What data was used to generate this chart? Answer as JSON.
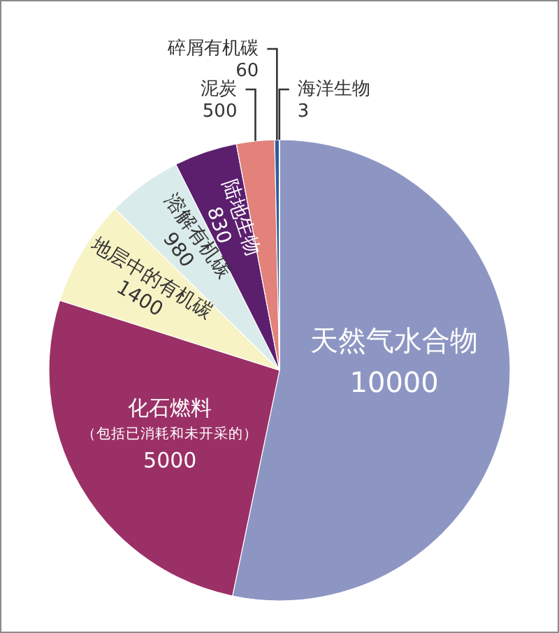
{
  "chart_data": {
    "type": "pie",
    "categories": [
      "天然气水合物",
      "化石燃料（包括已消耗和未开采的）",
      "地层中的有机碳",
      "溶解有机碳",
      "陆地生物",
      "泥炭",
      "碎屑有机碳",
      "海洋生物"
    ],
    "values": [
      10000,
      5000,
      1400,
      980,
      830,
      500,
      60,
      3
    ],
    "colors": [
      "#8d96c3",
      "#9b3066",
      "#f7f3c5",
      "#d9ebea",
      "#5b1f6e",
      "#e2827a",
      "#2e5c9e",
      "#5b8fd0"
    ],
    "data_labels": true
  }
}
